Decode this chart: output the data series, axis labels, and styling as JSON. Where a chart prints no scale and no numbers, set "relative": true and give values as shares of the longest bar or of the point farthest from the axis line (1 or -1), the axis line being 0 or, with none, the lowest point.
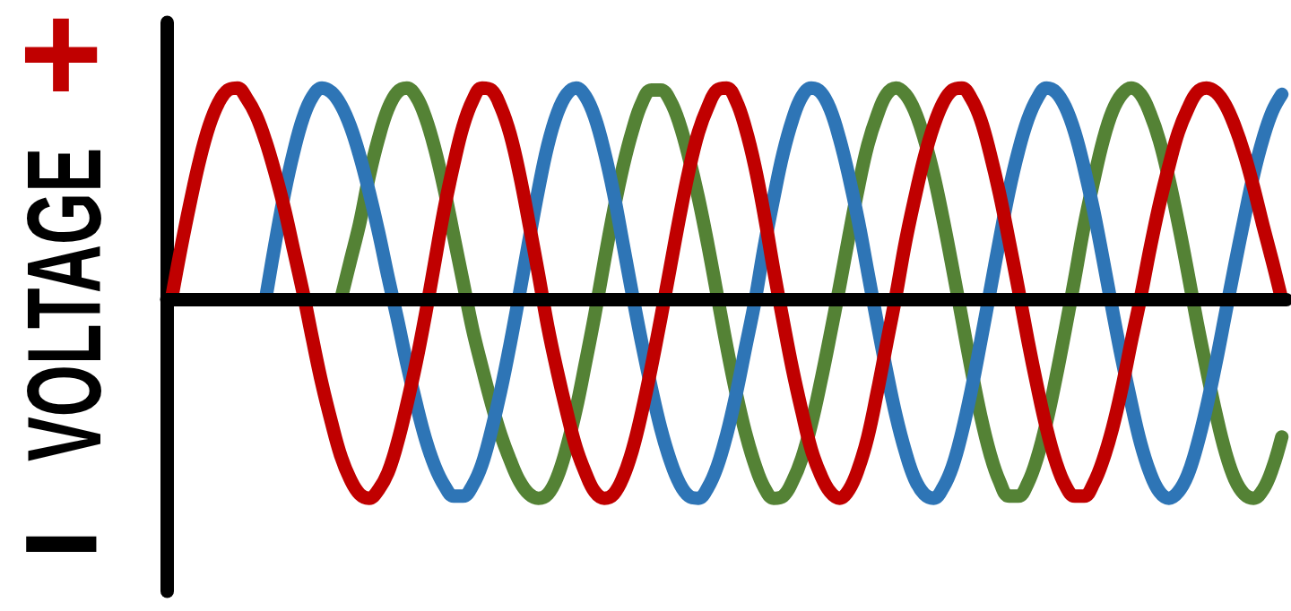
{
  "chart_data": {
    "type": "line",
    "relative": true,
    "ylabel": "VOLTAGE",
    "annotations": [
      "+",
      "−"
    ],
    "marker": "none",
    "line_style": "solid",
    "categories": [
      null,
      null,
      null,
      null,
      null,
      null,
      null,
      null,
      null,
      null,
      null,
      null,
      null,
      null,
      null,
      null,
      null,
      null,
      null,
      null,
      null,
      null,
      null,
      null,
      null,
      null,
      null,
      null,
      null,
      null,
      null,
      null,
      null,
      null,
      null,
      null,
      null,
      null,
      null,
      null,
      null,
      null,
      null,
      null,
      null,
      null,
      null,
      null,
      null,
      null,
      null,
      null,
      null,
      null,
      null,
      null,
      null,
      null,
      null,
      null,
      null,
      null,
      null,
      null,
      null,
      null,
      null,
      null,
      null,
      null,
      null,
      null,
      null,
      null,
      null,
      null,
      null,
      null,
      null,
      null,
      null,
      null,
      null,
      null,
      null,
      null,
      null,
      null,
      null,
      null,
      null,
      null,
      null,
      null,
      null,
      null,
      null,
      null,
      null,
      null,
      null,
      null,
      null,
      null,
      null,
      null,
      null,
      null,
      null,
      null,
      null,
      null,
      null,
      null,
      null,
      null,
      null,
      null,
      null
    ],
    "series": [
      {
        "color": "#c00000",
        "values": [
          0,
          0.24,
          0.46,
          0.66,
          0.82,
          0.93,
          0.99,
          1.0,
          0.95,
          0.87,
          0.75,
          0.6,
          0.43,
          0.23,
          0.03,
          -0.19,
          -0.4,
          -0.58,
          -0.74,
          -0.85,
          -0.92,
          -0.94,
          -0.9,
          -0.82,
          -0.68,
          -0.5,
          -0.3,
          -0.07,
          0.18,
          0.43,
          0.64,
          0.82,
          0.94,
          1.0,
          0.99,
          0.91,
          0.78,
          0.59,
          0.36,
          0.12,
          -0.13,
          -0.34,
          -0.53,
          -0.7,
          -0.82,
          -0.91,
          -0.94,
          -0.92,
          -0.84,
          -0.71,
          -0.53,
          -0.32,
          -0.09,
          0.15,
          0.39,
          0.61,
          0.79,
          0.91,
          0.99,
          1.0,
          0.94,
          0.81,
          0.63,
          0.4,
          0.14,
          -0.1,
          -0.33,
          -0.53,
          -0.71,
          -0.83,
          -0.91,
          -0.94,
          -0.9,
          -0.8,
          -0.65,
          -0.44,
          -0.21,
          0.02,
          0.27,
          0.48,
          0.67,
          0.82,
          0.93,
          0.99,
          1.0,
          0.95,
          0.85,
          0.69,
          0.5,
          0.28,
          0.05,
          -0.19,
          -0.41,
          -0.61,
          -0.77,
          -0.88,
          -0.93,
          -0.93,
          -0.87,
          -0.76,
          -0.61,
          -0.42,
          -0.2,
          0.01,
          0.24,
          0.45,
          0.63,
          0.79,
          0.9,
          0.98,
          1.0,
          0.98,
          0.92,
          0.82,
          0.69,
          0.53,
          0.35,
          0.18,
          0
        ]
      },
      {
        "color": "#2e75b6",
        "values": [
          null,
          null,
          null,
          null,
          null,
          null,
          null,
          null,
          null,
          null,
          0,
          0.26,
          0.5,
          0.7,
          0.86,
          0.96,
          1.0,
          0.98,
          0.92,
          0.82,
          0.68,
          0.51,
          0.32,
          0.11,
          -0.09,
          -0.3,
          -0.49,
          -0.66,
          -0.79,
          -0.88,
          -0.93,
          -0.93,
          -0.88,
          -0.78,
          -0.62,
          -0.43,
          -0.21,
          0.03,
          0.28,
          0.52,
          0.73,
          0.88,
          0.97,
          1.0,
          0.96,
          0.86,
          0.7,
          0.5,
          0.26,
          0.02,
          -0.21,
          -0.42,
          -0.61,
          -0.76,
          -0.87,
          -0.93,
          -0.94,
          -0.89,
          -0.79,
          -0.64,
          -0.45,
          -0.23,
          -0.01,
          0.25,
          0.48,
          0.69,
          0.85,
          0.96,
          1.0,
          0.98,
          0.9,
          0.76,
          0.58,
          0.37,
          0.13,
          -0.11,
          -0.34,
          -0.55,
          -0.72,
          -0.85,
          -0.92,
          -0.94,
          -0.89,
          -0.79,
          -0.63,
          -0.43,
          -0.2,
          0.04,
          0.28,
          0.51,
          0.7,
          0.85,
          0.95,
          1.0,
          0.98,
          0.91,
          0.79,
          0.62,
          0.42,
          0.19,
          -0.05,
          -0.28,
          -0.49,
          -0.68,
          -0.82,
          -0.91,
          -0.94,
          -0.91,
          -0.83,
          -0.69,
          -0.51,
          -0.3,
          -0.07,
          0.16,
          0.38,
          0.59,
          0.76,
          0.89,
          0.97
        ]
      },
      {
        "color": "#548235",
        "values": [
          null,
          null,
          null,
          null,
          null,
          null,
          null,
          null,
          null,
          null,
          null,
          null,
          null,
          null,
          null,
          null,
          null,
          null,
          0,
          0.18,
          0.36,
          0.58,
          0.76,
          0.9,
          0.98,
          1.0,
          0.96,
          0.86,
          0.71,
          0.52,
          0.3,
          0.08,
          -0.14,
          -0.32,
          -0.49,
          -0.64,
          -0.76,
          -0.86,
          -0.92,
          -0.94,
          -0.92,
          -0.84,
          -0.7,
          -0.52,
          -0.3,
          -0.07,
          0.18,
          0.42,
          0.63,
          0.8,
          0.93,
          0.99,
          0.99,
          0.94,
          0.83,
          0.67,
          0.48,
          0.26,
          0.02,
          -0.22,
          -0.44,
          -0.63,
          -0.78,
          -0.89,
          -0.94,
          -0.93,
          -0.86,
          -0.75,
          -0.59,
          -0.39,
          -0.17,
          0.06,
          0.3,
          0.53,
          0.73,
          0.87,
          0.97,
          1.0,
          0.97,
          0.89,
          0.76,
          0.59,
          0.38,
          0.15,
          -0.09,
          -0.33,
          -0.55,
          -0.73,
          -0.86,
          -0.93,
          -0.93,
          -0.87,
          -0.75,
          -0.58,
          -0.37,
          -0.14,
          0.1,
          0.35,
          0.56,
          0.75,
          0.89,
          0.97,
          1.0,
          0.97,
          0.88,
          0.75,
          0.57,
          0.36,
          0.13,
          -0.11,
          -0.33,
          -0.54,
          -0.72,
          -0.85,
          -0.92,
          -0.94,
          -0.9,
          -0.8,
          -0.65
        ]
      }
    ]
  }
}
